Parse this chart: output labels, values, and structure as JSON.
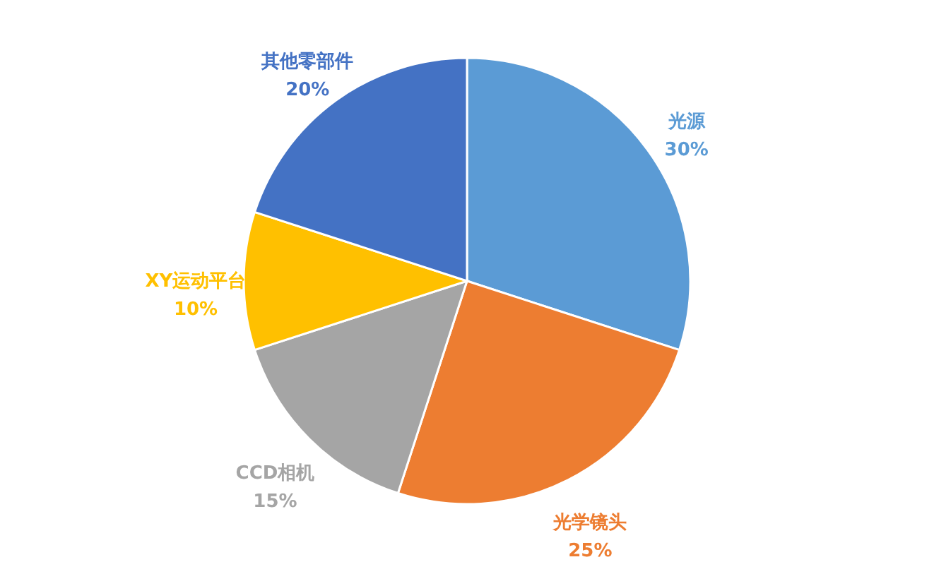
{
  "chart_data": {
    "type": "pie",
    "categories": [
      "光源",
      "光学镜头",
      "CCD相机",
      "XY运动平台",
      "其他零部件"
    ],
    "values": [
      30,
      25,
      15,
      10,
      20
    ],
    "value_labels": [
      "30%",
      "25%",
      "15%",
      "10%",
      "20%"
    ],
    "colors": [
      "#5b9bd5",
      "#ed7d31",
      "#a5a5a5",
      "#ffc000",
      "#4472c4"
    ]
  }
}
